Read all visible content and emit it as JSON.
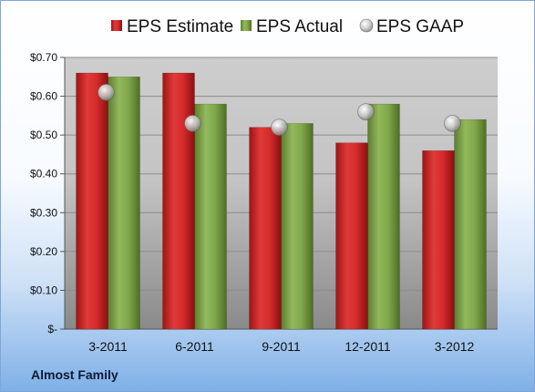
{
  "company": "Almost Family",
  "chart_data": {
    "type": "bar",
    "categories": [
      "3-2011",
      "6-2011",
      "9-2011",
      "12-2011",
      "3-2012"
    ],
    "series": [
      {
        "name": "EPS Estimate",
        "kind": "bar",
        "color": "#d42a2a",
        "values": [
          0.66,
          0.66,
          0.52,
          0.48,
          0.46
        ]
      },
      {
        "name": "EPS Actual",
        "kind": "bar",
        "color": "#7fa64a",
        "values": [
          0.65,
          0.58,
          0.53,
          0.58,
          0.54
        ]
      },
      {
        "name": "EPS GAAP",
        "kind": "marker",
        "color": "#c8c8c8",
        "values": [
          0.61,
          0.53,
          0.52,
          0.56,
          0.53
        ]
      }
    ],
    "ylim": [
      0,
      0.7
    ],
    "yticks": [
      0,
      0.1,
      0.2,
      0.3,
      0.4,
      0.5,
      0.6,
      0.7
    ],
    "ytick_labels": [
      "$-",
      "$0.10",
      "$0.20",
      "$0.30",
      "$0.40",
      "$0.50",
      "$0.60",
      "$0.70"
    ],
    "grid": true,
    "legend_position": "top",
    "title": "",
    "xlabel": "",
    "ylabel": ""
  }
}
